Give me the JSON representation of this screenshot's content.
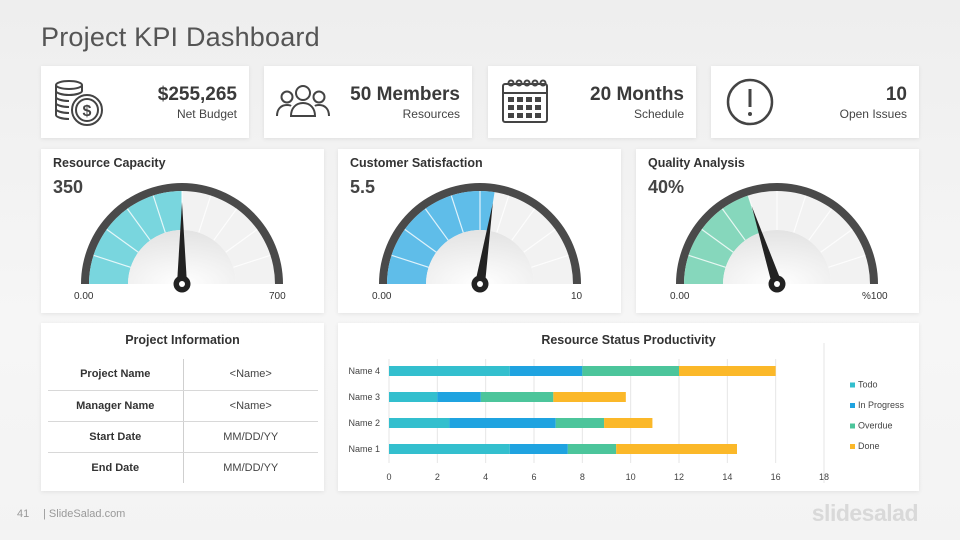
{
  "page": {
    "title": "Project KPI Dashboard"
  },
  "kpis": [
    {
      "value": "$255,265",
      "label": "Net Budget",
      "icon": "money-coins-icon"
    },
    {
      "value": "50 Members",
      "label": "Resources",
      "icon": "team-members-icon"
    },
    {
      "value": "20 Months",
      "label": "Schedule",
      "icon": "calendar-icon"
    },
    {
      "value": "10",
      "label": "Open Issues",
      "icon": "exclamation-circle-icon"
    }
  ],
  "gauges": [
    {
      "title": "Resource Capacity",
      "value": "350",
      "min_label": "0.00",
      "max_label": "700",
      "fraction": 0.5,
      "color": "#79d6de"
    },
    {
      "title": "Customer Satisfaction",
      "value": "5.5",
      "min_label": "0.00",
      "max_label": "10",
      "fraction": 0.55,
      "color": "#5fbde9"
    },
    {
      "title": "Quality Analysis",
      "value": "40%",
      "min_label": "0.00",
      "max_label": "%100",
      "fraction": 0.4,
      "color": "#86d7bc"
    }
  ],
  "project_info": {
    "title": "Project Information",
    "rows": [
      {
        "key": "Project Name",
        "value": "<Name>"
      },
      {
        "key": "Manager Name",
        "value": "<Name>"
      },
      {
        "key": "Start Date",
        "value": "MM/DD/YY"
      },
      {
        "key": "End Date",
        "value": "MM/DD/YY"
      }
    ]
  },
  "chart_data": {
    "type": "bar",
    "orientation": "horizontal",
    "stacked": true,
    "title": "Resource Status Productivity",
    "categories": [
      "Name 1",
      "Name 2",
      "Name 3",
      "Name 4"
    ],
    "series": [
      {
        "name": "Todo",
        "color": "#33bfce",
        "values": [
          5,
          2.5,
          2,
          5
        ]
      },
      {
        "name": "In Progress",
        "color": "#1fa3e0",
        "values": [
          2.4,
          4.4,
          1.8,
          3
        ]
      },
      {
        "name": "Overdue",
        "color": "#4cc59b",
        "values": [
          2,
          2,
          3,
          4
        ]
      },
      {
        "name": "Done",
        "color": "#fbb829",
        "values": [
          5,
          2,
          3,
          4
        ]
      }
    ],
    "xlim": [
      0,
      18
    ],
    "xticks": [
      "0",
      "2",
      "4",
      "6",
      "8",
      "10",
      "12",
      "14",
      "16",
      "18"
    ],
    "grid": true,
    "legend": "right"
  },
  "footer": {
    "page_number": "41",
    "site": "| SlideSalad.com",
    "brand": "slidesalad"
  }
}
